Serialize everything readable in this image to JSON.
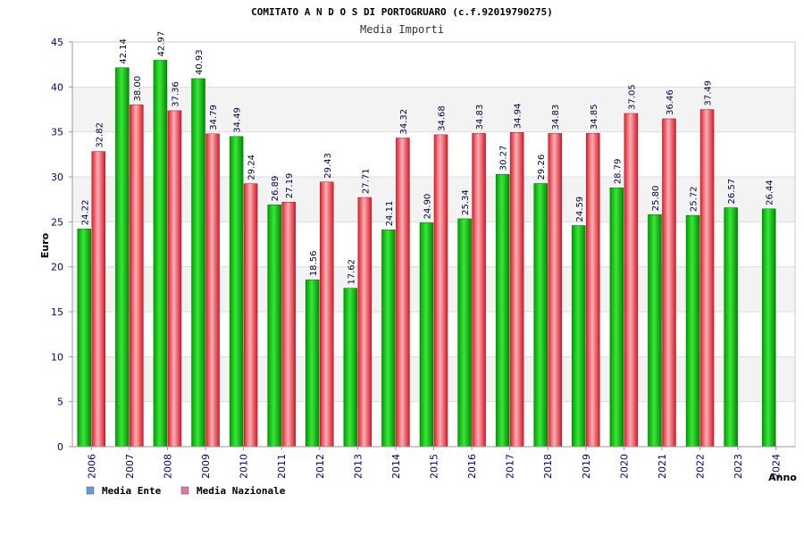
{
  "chart_data": {
    "type": "bar",
    "title": "COMITATO A N D O S DI PORTOGRUARO (c.f.92019790275)",
    "subtitle": "Media Importi",
    "ylabel": "Euro",
    "xlabel": "Anno",
    "ylim": [
      0,
      45
    ],
    "yticks": [
      "0",
      "5",
      "10",
      "15",
      "20",
      "25",
      "30",
      "35",
      "40",
      "45"
    ],
    "categories": [
      "2006",
      "2007",
      "2008",
      "2009",
      "2010",
      "2011",
      "2012",
      "2013",
      "2014",
      "2015",
      "2016",
      "2017",
      "2018",
      "2019",
      "2020",
      "2021",
      "2022",
      "2023",
      "2024"
    ],
    "series": [
      {
        "name": "Media Ente",
        "color": "#00a000",
        "legend_color": "#6699dd",
        "values": [
          24.22,
          42.14,
          42.97,
          40.93,
          34.49,
          26.89,
          18.56,
          17.62,
          24.11,
          24.9,
          25.34,
          30.27,
          29.26,
          24.59,
          28.79,
          25.8,
          25.72,
          26.57,
          26.44
        ],
        "labels": [
          "24.22",
          "42.14",
          "42.97",
          "40.93",
          "34.49",
          "26.89",
          "18.56",
          "17.62",
          "24.11",
          "24.90",
          "25.34",
          "30.27",
          "29.26",
          "24.59",
          "28.79",
          "25.80",
          "25.72",
          "26.57",
          "26.44"
        ]
      },
      {
        "name": "Media Nazionale",
        "color": "#e8202a",
        "legend_color": "#dd77aa",
        "values": [
          32.82,
          38.0,
          37.36,
          34.79,
          29.24,
          27.19,
          29.43,
          27.71,
          34.32,
          34.68,
          34.83,
          34.94,
          34.83,
          34.85,
          37.05,
          36.46,
          37.49,
          null,
          null
        ],
        "labels": [
          "32.82",
          "38.00",
          "37.36",
          "34.79",
          "29.24",
          "27.19",
          "29.43",
          "27.71",
          "34.32",
          "34.68",
          "34.83",
          "34.94",
          "34.83",
          "34.85",
          "37.05",
          "36.46",
          "37.49",
          null,
          null
        ]
      }
    ],
    "grid": true,
    "legend_position": "bottom-left"
  }
}
